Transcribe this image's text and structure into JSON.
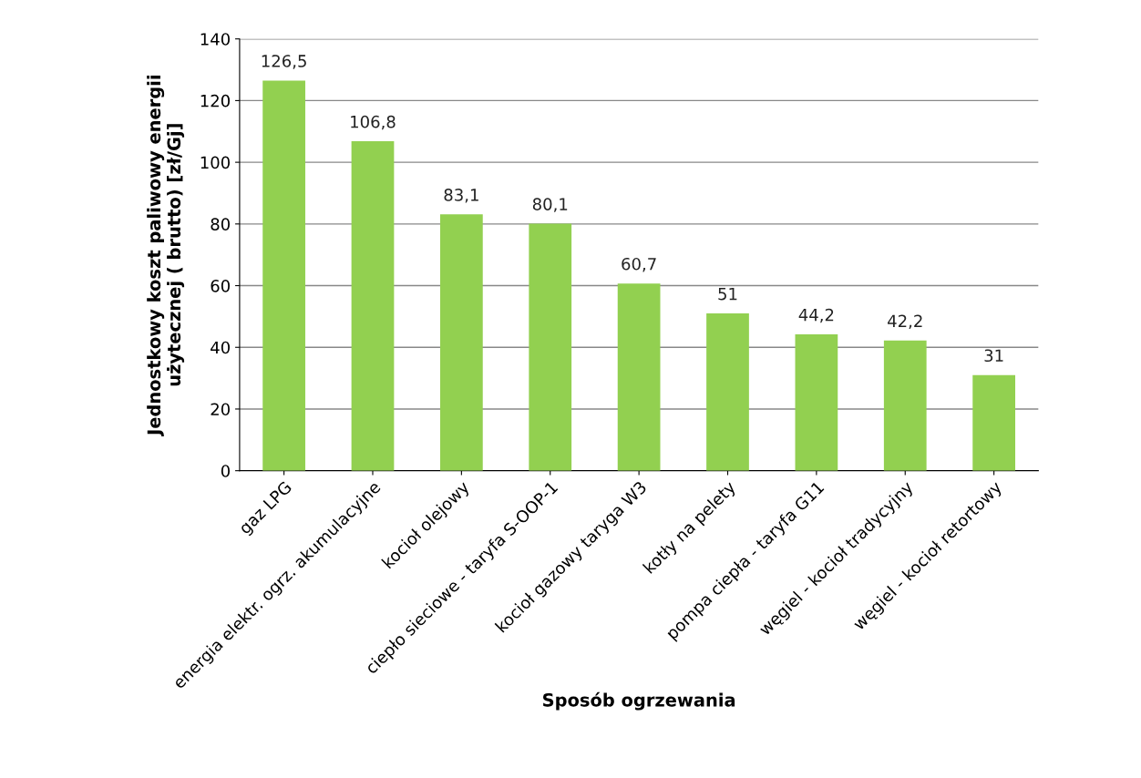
{
  "chart_data": {
    "type": "bar",
    "xlabel": "Sposób ogrzewania",
    "ylabel": "Jednostkowy koszt paliwowy energii\nużytecznej ( brutto) [zł/Gj]",
    "categories": [
      "gaz LPG",
      "energia elektr. ogrz. akumulacyjne",
      "kocioł olejowy",
      "ciepło sieciowe - taryfa S-OOP-1",
      "kocioł gazowy taryga W3",
      "kotły na pelety",
      "pompa ciepła - taryfa G11",
      "węgiel - kocioł tradycyjny",
      "węgiel - kocioł retortowy"
    ],
    "values": [
      126.5,
      106.8,
      83.1,
      80.1,
      60.7,
      51,
      44.2,
      42.2,
      31
    ],
    "value_labels": [
      "126,5",
      "106,8",
      "83,1",
      "80,1",
      "60,7",
      "51",
      "44,2",
      "42,2",
      "31"
    ],
    "color": "#92d050",
    "ylim": [
      0,
      140
    ],
    "yticks": [
      0,
      20,
      40,
      60,
      80,
      100,
      120,
      140
    ],
    "grid": "y",
    "legend": false
  }
}
